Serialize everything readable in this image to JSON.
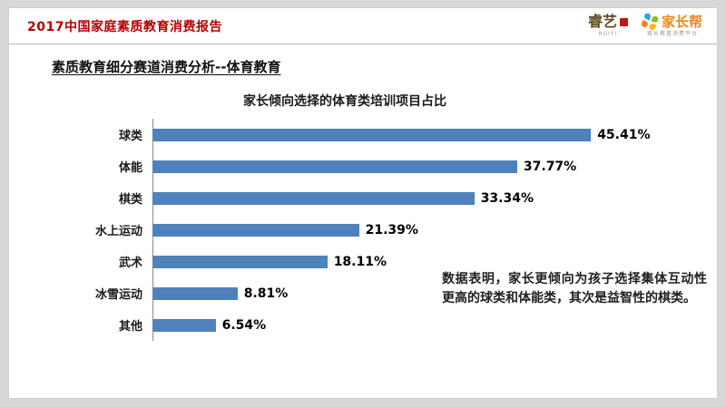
{
  "page": {
    "header": {
      "report_title": "2017中国家庭素质教育消费报告",
      "logos": {
        "ruiyi": {
          "name": "睿艺",
          "sub": "RUIYI"
        },
        "jiazhangbang": {
          "name": "家长帮",
          "sub": "家长教育消费平台"
        }
      }
    },
    "section_title": "素质教育细分赛道消费分析--体育教育",
    "annotation": "数据表明，家长更倾向为孩子选择集体互动性更高的球类和体能类，其次是益智性的棋类。"
  },
  "chart_data": {
    "type": "bar",
    "orientation": "horizontal",
    "title": "家长倾向选择的体育类培训项目占比",
    "categories": [
      "球类",
      "体能",
      "棋类",
      "水上运动",
      "武术",
      "冰雪运动",
      "其他"
    ],
    "values": [
      45.41,
      37.77,
      33.34,
      21.39,
      18.11,
      8.81,
      6.54
    ],
    "value_labels": [
      "45.41%",
      "37.77%",
      "33.34%",
      "21.39%",
      "18.11%",
      "8.81%",
      "6.54%"
    ],
    "xlim": [
      0,
      50
    ],
    "bar_color": "#4f81bd",
    "grid": false,
    "legend": "none"
  }
}
